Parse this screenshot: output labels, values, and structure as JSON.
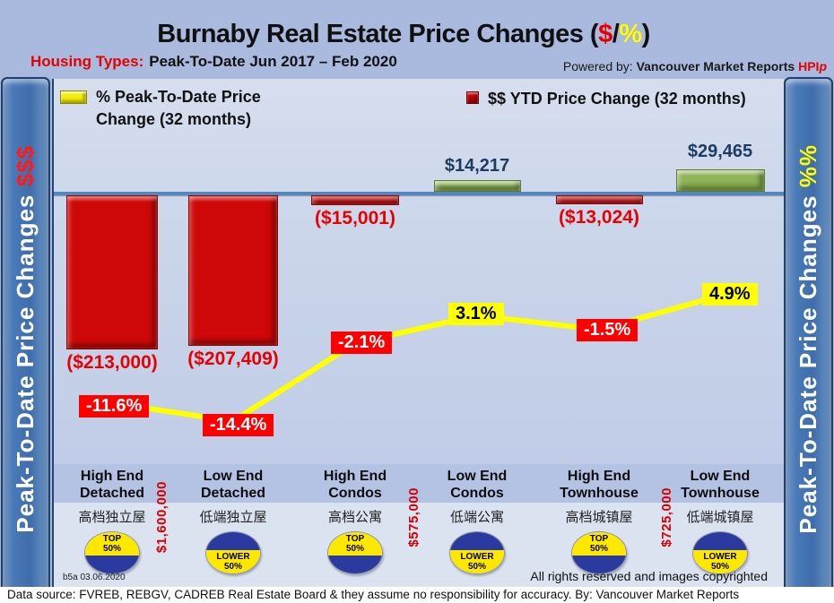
{
  "header": {
    "title_prefix": "Burnaby Real Estate Price Changes (",
    "title_dollar": "$",
    "title_slash": "/",
    "title_percent": "%",
    "title_suffix": ")",
    "subtitle_label": "Housing Types:",
    "subtitle_text": "Peak-To-Date Jun 2017 – Feb 2020",
    "powered_prefix": "Powered by: ",
    "powered_brand": "Vancouver Market Reports ",
    "powered_hpi": "HPI",
    "powered_hpi_suffix": "p"
  },
  "sidebar_left": {
    "text": "Peak-To-Date Price Changes ",
    "accent": "$$$"
  },
  "sidebar_right": {
    "text": "Peak-To-Date  Price  Changes  ",
    "accent": "%%"
  },
  "legend": [
    {
      "line1": "% Peak-To-Date Price",
      "line2": "Change (32 months)",
      "color": "#f3ef08"
    },
    {
      "line1": "$$ YTD Price Change (32 months)",
      "line2": "",
      "color": "#c00000"
    }
  ],
  "chart_data": {
    "type": "bar+line",
    "categories": [
      "High End Detached",
      "Low End Detached",
      "High End Condos",
      "Low End Condos",
      "High End Townhouse",
      "Low End Townhouse"
    ],
    "categories_zh": [
      "高档独立屋",
      "低端独立屋",
      "高档公寓",
      "低端公寓",
      "高档城镇屋",
      "低端城镇屋"
    ],
    "series": [
      {
        "name": "$$ YTD Price Change (32 months)",
        "type": "bar",
        "values": [
          -213000,
          -207409,
          -15001,
          14217,
          -13024,
          29465
        ],
        "labels": [
          "($213,000)",
          "($207,409)",
          "($15,001)",
          "$14,217",
          "($13,024)",
          "$29,465"
        ],
        "negative_color": "#ce0808",
        "positive_color": "#8fb356"
      },
      {
        "name": "% Peak-To-Date Price Change (32 months)",
        "type": "line",
        "values": [
          -11.6,
          -14.4,
          -2.1,
          3.1,
          -1.5,
          4.9
        ],
        "labels": [
          "-11.6%",
          "-14.4%",
          "-2.1%",
          "3.1%",
          "-1.5%",
          "4.9%"
        ],
        "line_color": "#ffff00"
      }
    ],
    "price_markers": [
      "$1,600,000",
      "$575,000",
      "$725,000"
    ],
    "badges": [
      {
        "line1": "TOP",
        "line2": "50%",
        "position": "top"
      },
      {
        "line1": "LOWER",
        "line2": "50%",
        "position": "lower"
      },
      {
        "line1": "TOP",
        "line2": "50%",
        "position": "top"
      },
      {
        "line1": "LOWER",
        "line2": "50%",
        "position": "lower"
      },
      {
        "line1": "TOP",
        "line2": "50%",
        "position": "top"
      },
      {
        "line1": "LOWER",
        "line2": "50%",
        "position": "lower"
      }
    ],
    "baseline_value": 0,
    "legend_position": "top",
    "grid": false
  },
  "footer": {
    "code": "b5a 03.06.2020",
    "rights": "All rights reserved and  images copyrighted",
    "source": "Data source: FVREB, REBGV, CADREB Real Estate Board & they assume no responsibility for accuracy. By: Vancouver Market Reports"
  }
}
